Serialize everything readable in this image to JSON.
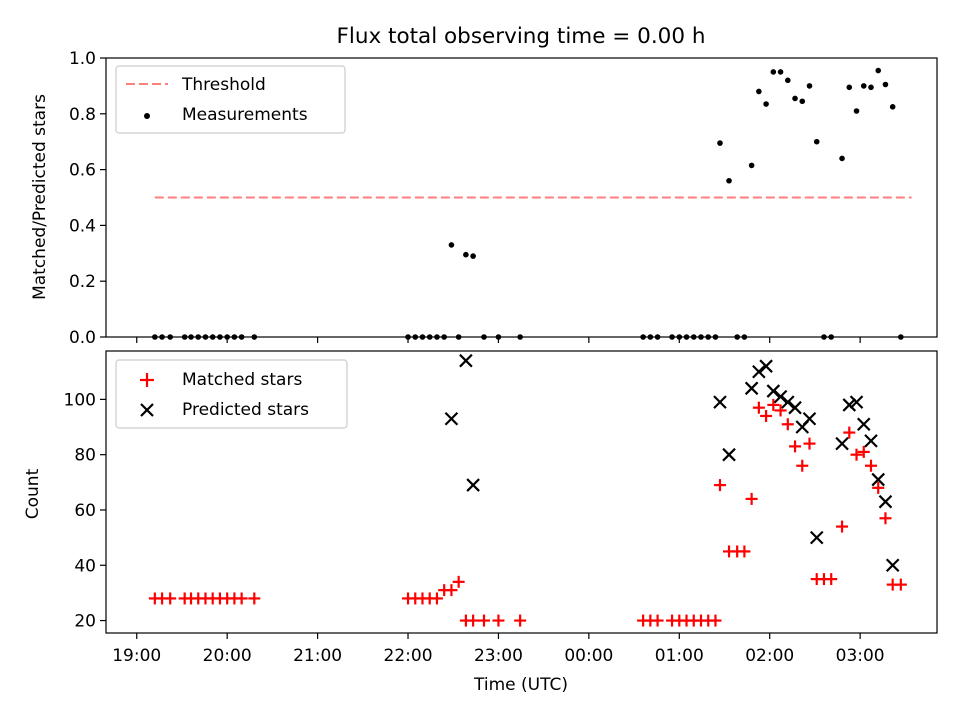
{
  "chart_data": {
    "title": "Flux total observing time = 0.00 h",
    "xlabel": "Time (UTC)",
    "x_ticks": [
      {
        "h": 0.0,
        "label": "19:00"
      },
      {
        "h": 1.0,
        "label": "20:00"
      },
      {
        "h": 2.0,
        "label": "21:00"
      },
      {
        "h": 3.0,
        "label": "22:00"
      },
      {
        "h": 4.0,
        "label": "23:00"
      },
      {
        "h": 5.0,
        "label": "00:00"
      },
      {
        "h": 6.0,
        "label": "01:00"
      },
      {
        "h": 7.0,
        "label": "02:00"
      },
      {
        "h": 8.0,
        "label": "03:00"
      }
    ],
    "xlim": [
      -0.34,
      8.85
    ],
    "panels": [
      {
        "type": "scatter",
        "ylabel": "Matched/Predicted stars",
        "ylim": [
          0.0,
          1.0
        ],
        "yticks": [
          "0.0",
          "0.2",
          "0.4",
          "0.6",
          "0.8",
          "1.0"
        ],
        "threshold": {
          "name": "Threshold",
          "value": 0.5,
          "x_range": [
            0.2,
            8.57
          ],
          "color": "#ff7f7f"
        },
        "series": [
          {
            "name": "Measurements",
            "marker": "dot",
            "color": "#000000",
            "points": [
              [
                0.2,
                0
              ],
              [
                0.28,
                0
              ],
              [
                0.37,
                0
              ],
              [
                0.53,
                0
              ],
              [
                0.6,
                0
              ],
              [
                0.68,
                0
              ],
              [
                0.76,
                0
              ],
              [
                0.84,
                0
              ],
              [
                0.92,
                0
              ],
              [
                1.0,
                0
              ],
              [
                1.08,
                0
              ],
              [
                1.16,
                0
              ],
              [
                1.3,
                0
              ],
              [
                3.0,
                0
              ],
              [
                3.08,
                0
              ],
              [
                3.16,
                0
              ],
              [
                3.24,
                0
              ],
              [
                3.32,
                0
              ],
              [
                3.4,
                0
              ],
              [
                3.48,
                0.33
              ],
              [
                3.56,
                0
              ],
              [
                3.64,
                0.295
              ],
              [
                3.72,
                0.29
              ],
              [
                3.84,
                0
              ],
              [
                4.0,
                0
              ],
              [
                4.24,
                0
              ],
              [
                5.6,
                0
              ],
              [
                5.68,
                0
              ],
              [
                5.76,
                0
              ],
              [
                5.92,
                0
              ],
              [
                6.0,
                0
              ],
              [
                6.08,
                0
              ],
              [
                6.16,
                0
              ],
              [
                6.24,
                0
              ],
              [
                6.32,
                0
              ],
              [
                6.4,
                0
              ],
              [
                6.45,
                0.695
              ],
              [
                6.55,
                0.56
              ],
              [
                6.64,
                0
              ],
              [
                6.72,
                0
              ],
              [
                6.8,
                0.615
              ],
              [
                6.88,
                0.88
              ],
              [
                6.96,
                0.835
              ],
              [
                7.04,
                0.95
              ],
              [
                7.12,
                0.95
              ],
              [
                7.2,
                0.92
              ],
              [
                7.28,
                0.855
              ],
              [
                7.36,
                0.845
              ],
              [
                7.44,
                0.9
              ],
              [
                7.52,
                0.7
              ],
              [
                7.6,
                0
              ],
              [
                7.68,
                0
              ],
              [
                7.8,
                0.64
              ],
              [
                7.88,
                0.895
              ],
              [
                7.96,
                0.81
              ],
              [
                8.04,
                0.9
              ],
              [
                8.12,
                0.895
              ],
              [
                8.2,
                0.955
              ],
              [
                8.28,
                0.905
              ],
              [
                8.36,
                0.825
              ],
              [
                8.45,
                0
              ]
            ]
          }
        ]
      },
      {
        "type": "scatter",
        "ylabel": "Count",
        "ylim": [
          15.5,
          117.5
        ],
        "yticks": [
          "20",
          "40",
          "60",
          "80",
          "100"
        ],
        "series": [
          {
            "name": "Matched stars",
            "marker": "plus",
            "color": "#ff0000",
            "points": [
              [
                0.2,
                28
              ],
              [
                0.28,
                28
              ],
              [
                0.37,
                28
              ],
              [
                0.53,
                28
              ],
              [
                0.6,
                28
              ],
              [
                0.68,
                28
              ],
              [
                0.76,
                28
              ],
              [
                0.84,
                28
              ],
              [
                0.92,
                28
              ],
              [
                1.0,
                28
              ],
              [
                1.08,
                28
              ],
              [
                1.16,
                28
              ],
              [
                1.3,
                28
              ],
              [
                3.0,
                28
              ],
              [
                3.08,
                28
              ],
              [
                3.16,
                28
              ],
              [
                3.24,
                28
              ],
              [
                3.32,
                28
              ],
              [
                3.4,
                31
              ],
              [
                3.48,
                31
              ],
              [
                3.56,
                34
              ],
              [
                3.64,
                20
              ],
              [
                3.72,
                20
              ],
              [
                3.84,
                20
              ],
              [
                4.0,
                20
              ],
              [
                4.24,
                20
              ],
              [
                5.6,
                20
              ],
              [
                5.68,
                20
              ],
              [
                5.76,
                20
              ],
              [
                5.92,
                20
              ],
              [
                6.0,
                20
              ],
              [
                6.08,
                20
              ],
              [
                6.16,
                20
              ],
              [
                6.24,
                20
              ],
              [
                6.32,
                20
              ],
              [
                6.4,
                20
              ],
              [
                6.45,
                69
              ],
              [
                6.55,
                45
              ],
              [
                6.64,
                45
              ],
              [
                6.72,
                45
              ],
              [
                6.8,
                64
              ],
              [
                6.88,
                97
              ],
              [
                6.96,
                94
              ],
              [
                7.04,
                98
              ],
              [
                7.12,
                96
              ],
              [
                7.2,
                91
              ],
              [
                7.28,
                83
              ],
              [
                7.36,
                76
              ],
              [
                7.44,
                84
              ],
              [
                7.52,
                35
              ],
              [
                7.6,
                35
              ],
              [
                7.68,
                35
              ],
              [
                7.8,
                54
              ],
              [
                7.88,
                88
              ],
              [
                7.96,
                80
              ],
              [
                8.04,
                81
              ],
              [
                8.12,
                76
              ],
              [
                8.2,
                68
              ],
              [
                8.28,
                57
              ],
              [
                8.36,
                33
              ],
              [
                8.45,
                33
              ]
            ]
          },
          {
            "name": "Predicted stars",
            "marker": "x",
            "color": "#000000",
            "points": [
              [
                3.48,
                93
              ],
              [
                3.64,
                114
              ],
              [
                3.72,
                69
              ],
              [
                6.45,
                99
              ],
              [
                6.55,
                80
              ],
              [
                6.8,
                104
              ],
              [
                6.88,
                110
              ],
              [
                6.96,
                112
              ],
              [
                7.04,
                103
              ],
              [
                7.12,
                101
              ],
              [
                7.2,
                99
              ],
              [
                7.28,
                97
              ],
              [
                7.36,
                90
              ],
              [
                7.44,
                93
              ],
              [
                7.52,
                50
              ],
              [
                7.8,
                84
              ],
              [
                7.88,
                98
              ],
              [
                7.96,
                99
              ],
              [
                8.04,
                91
              ],
              [
                8.12,
                85
              ],
              [
                8.2,
                71
              ],
              [
                8.28,
                63
              ],
              [
                8.36,
                40
              ]
            ]
          }
        ]
      }
    ]
  }
}
